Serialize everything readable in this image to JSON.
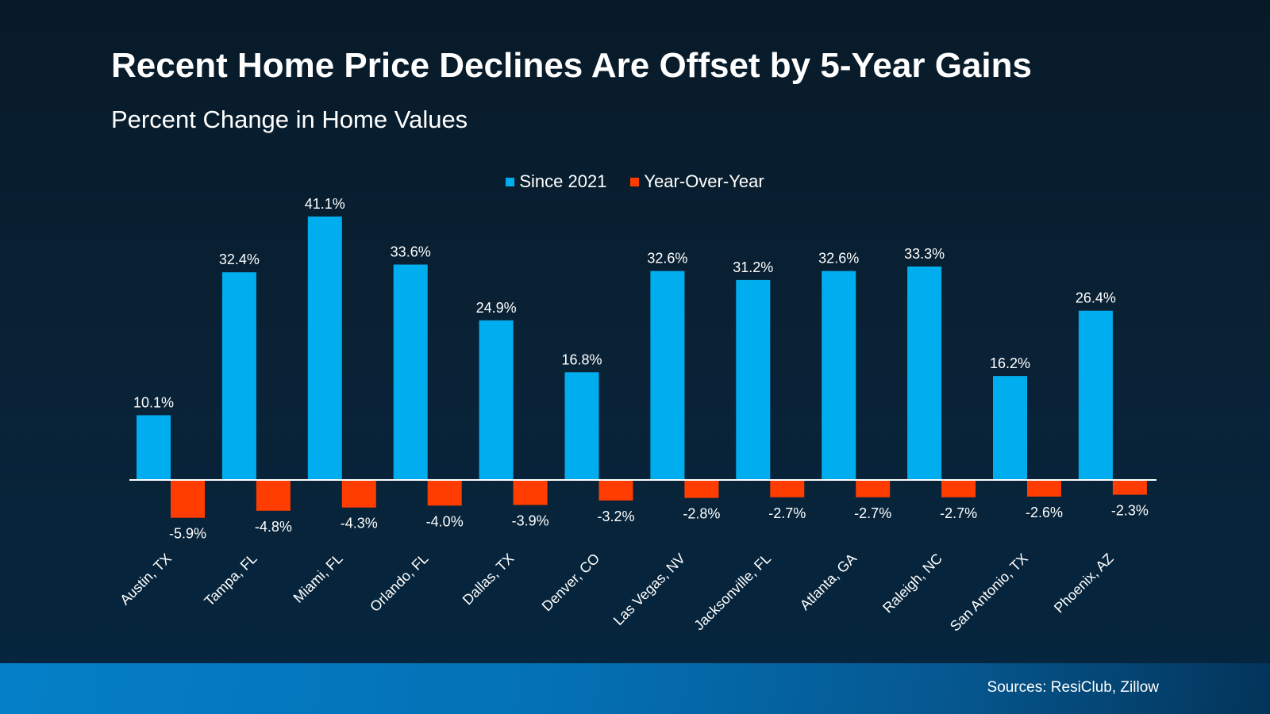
{
  "chart_data": {
    "type": "bar",
    "title": "Recent Home Price Declines Are Offset by 5-Year Gains",
    "subtitle": "Percent Change in Home Values",
    "categories": [
      "Austin, TX",
      "Tampa, FL",
      "Miami, FL",
      "Orlando, FL",
      "Dallas, TX",
      "Denver, CO",
      "Las Vegas, NV",
      "Jacksonville, FL",
      "Atlanta, GA",
      "Raleigh, NC",
      "San Antonio, TX",
      "Phoenix, AZ"
    ],
    "series": [
      {
        "name": "Since 2021",
        "color": "#00aeef",
        "values": [
          10.1,
          32.4,
          41.1,
          33.6,
          24.9,
          16.8,
          32.6,
          31.2,
          32.6,
          33.3,
          16.2,
          26.4
        ]
      },
      {
        "name": "Year-Over-Year",
        "color": "#ff3d00",
        "values": [
          -5.9,
          -4.8,
          -4.3,
          -4.0,
          -3.9,
          -3.2,
          -2.8,
          -2.7,
          -2.7,
          -2.7,
          -2.6,
          -2.3
        ]
      }
    ],
    "value_suffix": "%",
    "legend": "top-center",
    "grid": false,
    "ylim": [
      -8,
      45
    ]
  },
  "footer": {
    "sources": "Sources: ResiClub, Zillow"
  }
}
